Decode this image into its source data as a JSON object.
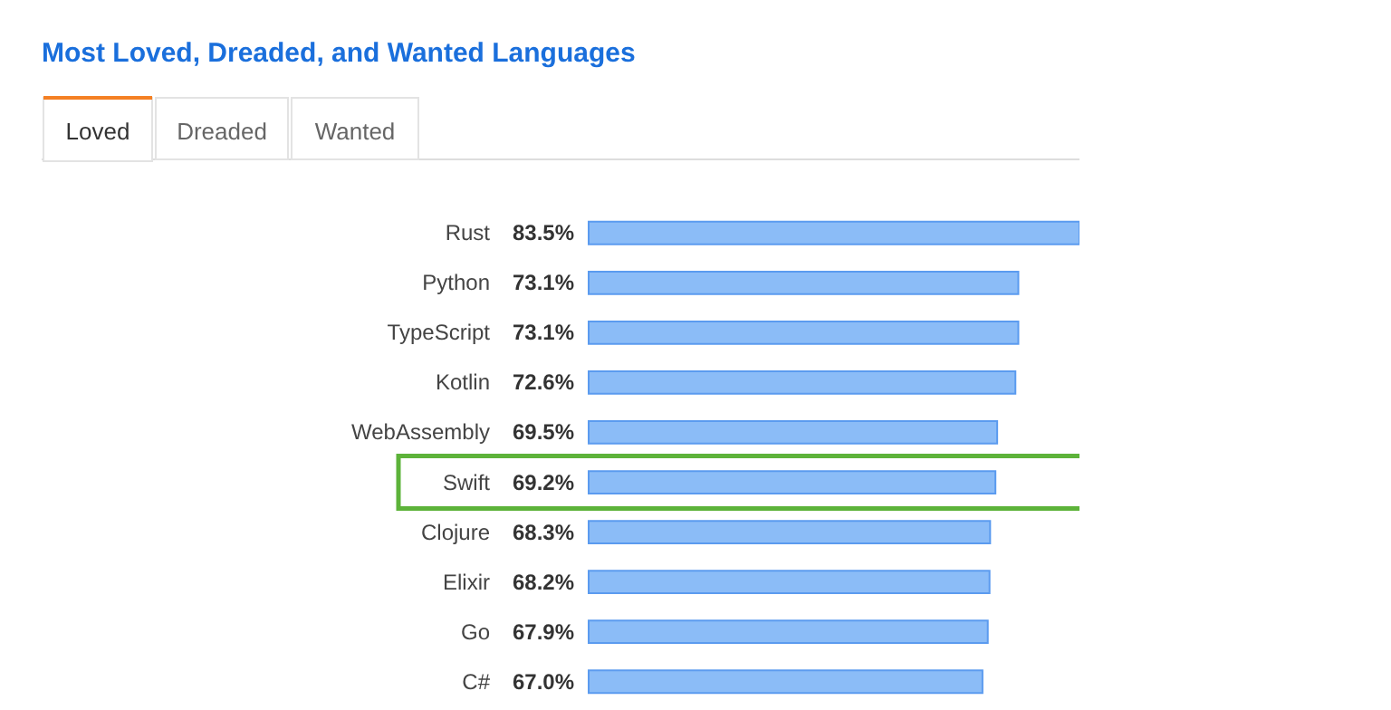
{
  "chart_data": {
    "type": "bar",
    "orientation": "horizontal",
    "title": "Most Loved, Dreaded, and Wanted Languages",
    "categories": [
      "Rust",
      "Python",
      "TypeScript",
      "Kotlin",
      "WebAssembly",
      "Swift",
      "Clojure",
      "Elixir",
      "Go",
      "C#"
    ],
    "values": [
      83.5,
      73.1,
      73.1,
      72.6,
      69.5,
      69.2,
      68.3,
      68.2,
      67.9,
      67.0
    ],
    "value_labels": [
      "83.5%",
      "73.1%",
      "73.1%",
      "72.6%",
      "69.5%",
      "69.2%",
      "68.3%",
      "68.2%",
      "67.9%",
      "67.0%"
    ],
    "color": "#8bbcf7",
    "annotations": [
      "Loved",
      "Dreaded",
      "Wanted"
    ]
  }
}
